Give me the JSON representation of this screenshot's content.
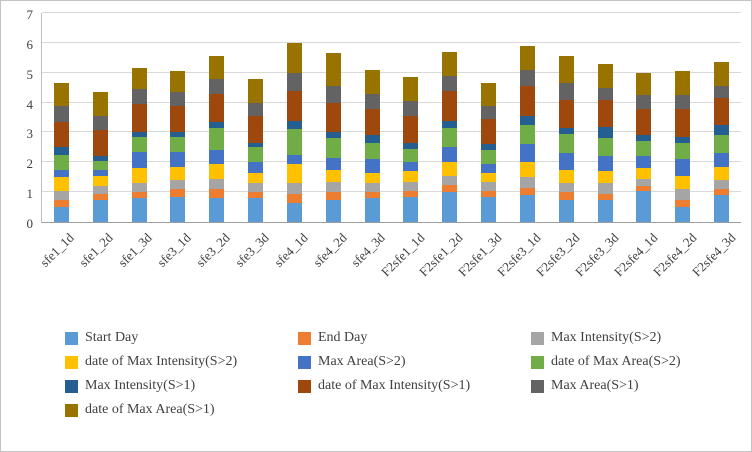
{
  "chart_data": {
    "type": "bar",
    "subtype": "stacked",
    "title": "",
    "xlabel": "",
    "ylabel": "",
    "ylim": [
      0,
      7
    ],
    "yticks": [
      0,
      1,
      2,
      3,
      4,
      5,
      6,
      7
    ],
    "grid": true,
    "legend_position": "bottom",
    "categories": [
      "sfe1_1d",
      "sfe1_2d",
      "sfe1_3d",
      "sfe3_1d",
      "sfe3_2d",
      "sfe3_3d",
      "sfe4_1d",
      "sfe4_2d",
      "sfe4_3d",
      "F2sfe1_1d",
      "F2sfe1_2d",
      "F2sfe1_3d",
      "F2sfe3_1d",
      "F2sfe3_2d",
      "F2sfe3_3d",
      "F2sfe4_1d",
      "F2sfe4_2d",
      "F2sfe4_3d"
    ],
    "series": [
      {
        "name": "Start Day",
        "color": "#5B9BD5",
        "values": [
          0.5,
          0.75,
          0.8,
          0.85,
          0.8,
          0.8,
          0.65,
          0.75,
          0.8,
          0.85,
          1.0,
          0.85,
          0.9,
          0.75,
          0.75,
          1.05,
          0.5,
          0.9
        ]
      },
      {
        "name": "End Day",
        "color": "#ED7D31",
        "values": [
          0.25,
          0.2,
          0.2,
          0.25,
          0.3,
          0.2,
          0.3,
          0.25,
          0.2,
          0.2,
          0.25,
          0.2,
          0.25,
          0.25,
          0.2,
          0.15,
          0.25,
          0.2
        ]
      },
      {
        "name": "Max Intensity(S>2)",
        "color": "#A5A5A5",
        "values": [
          0.3,
          0.25,
          0.3,
          0.3,
          0.35,
          0.3,
          0.35,
          0.35,
          0.3,
          0.3,
          0.3,
          0.3,
          0.35,
          0.3,
          0.35,
          0.25,
          0.35,
          0.3
        ]
      },
      {
        "name": "date of Max Intensity(S>2)",
        "color": "#FFC000",
        "values": [
          0.45,
          0.35,
          0.5,
          0.45,
          0.5,
          0.35,
          0.65,
          0.4,
          0.35,
          0.35,
          0.45,
          0.3,
          0.5,
          0.45,
          0.4,
          0.35,
          0.45,
          0.45
        ]
      },
      {
        "name": "Max Area(S>2)",
        "color": "#4472C4",
        "values": [
          0.25,
          0.2,
          0.55,
          0.5,
          0.45,
          0.35,
          0.3,
          0.4,
          0.45,
          0.3,
          0.5,
          0.3,
          0.6,
          0.55,
          0.5,
          0.4,
          0.55,
          0.45
        ]
      },
      {
        "name": "date of Max Area(S>2)",
        "color": "#70AD47",
        "values": [
          0.5,
          0.3,
          0.5,
          0.5,
          0.75,
          0.5,
          0.85,
          0.65,
          0.55,
          0.45,
          0.65,
          0.45,
          0.65,
          0.65,
          0.6,
          0.5,
          0.55,
          0.6
        ]
      },
      {
        "name": "Max Intensity(S>1)",
        "color": "#255E91",
        "values": [
          0.25,
          0.15,
          0.15,
          0.15,
          0.2,
          0.15,
          0.3,
          0.2,
          0.25,
          0.2,
          0.25,
          0.2,
          0.3,
          0.2,
          0.4,
          0.2,
          0.2,
          0.35
        ]
      },
      {
        "name": "date of Max Intensity(S>1)",
        "color": "#9E480E",
        "values": [
          0.85,
          0.9,
          0.95,
          0.9,
          0.95,
          0.9,
          1.0,
          1.0,
          0.9,
          0.9,
          1.0,
          0.85,
          1.0,
          0.95,
          0.9,
          0.9,
          0.95,
          0.9
        ]
      },
      {
        "name": "Max Area(S>1)",
        "color": "#636363",
        "values": [
          0.55,
          0.45,
          0.5,
          0.45,
          0.5,
          0.45,
          0.6,
          0.55,
          0.5,
          0.5,
          0.5,
          0.45,
          0.55,
          0.55,
          0.4,
          0.45,
          0.45,
          0.4
        ]
      },
      {
        "name": "date of Max Area(S>1)",
        "color": "#997300",
        "values": [
          0.75,
          0.8,
          0.7,
          0.7,
          0.75,
          0.8,
          1.0,
          1.1,
          0.8,
          0.8,
          0.8,
          0.75,
          0.8,
          0.9,
          0.8,
          0.75,
          0.8,
          0.8
        ]
      }
    ]
  }
}
